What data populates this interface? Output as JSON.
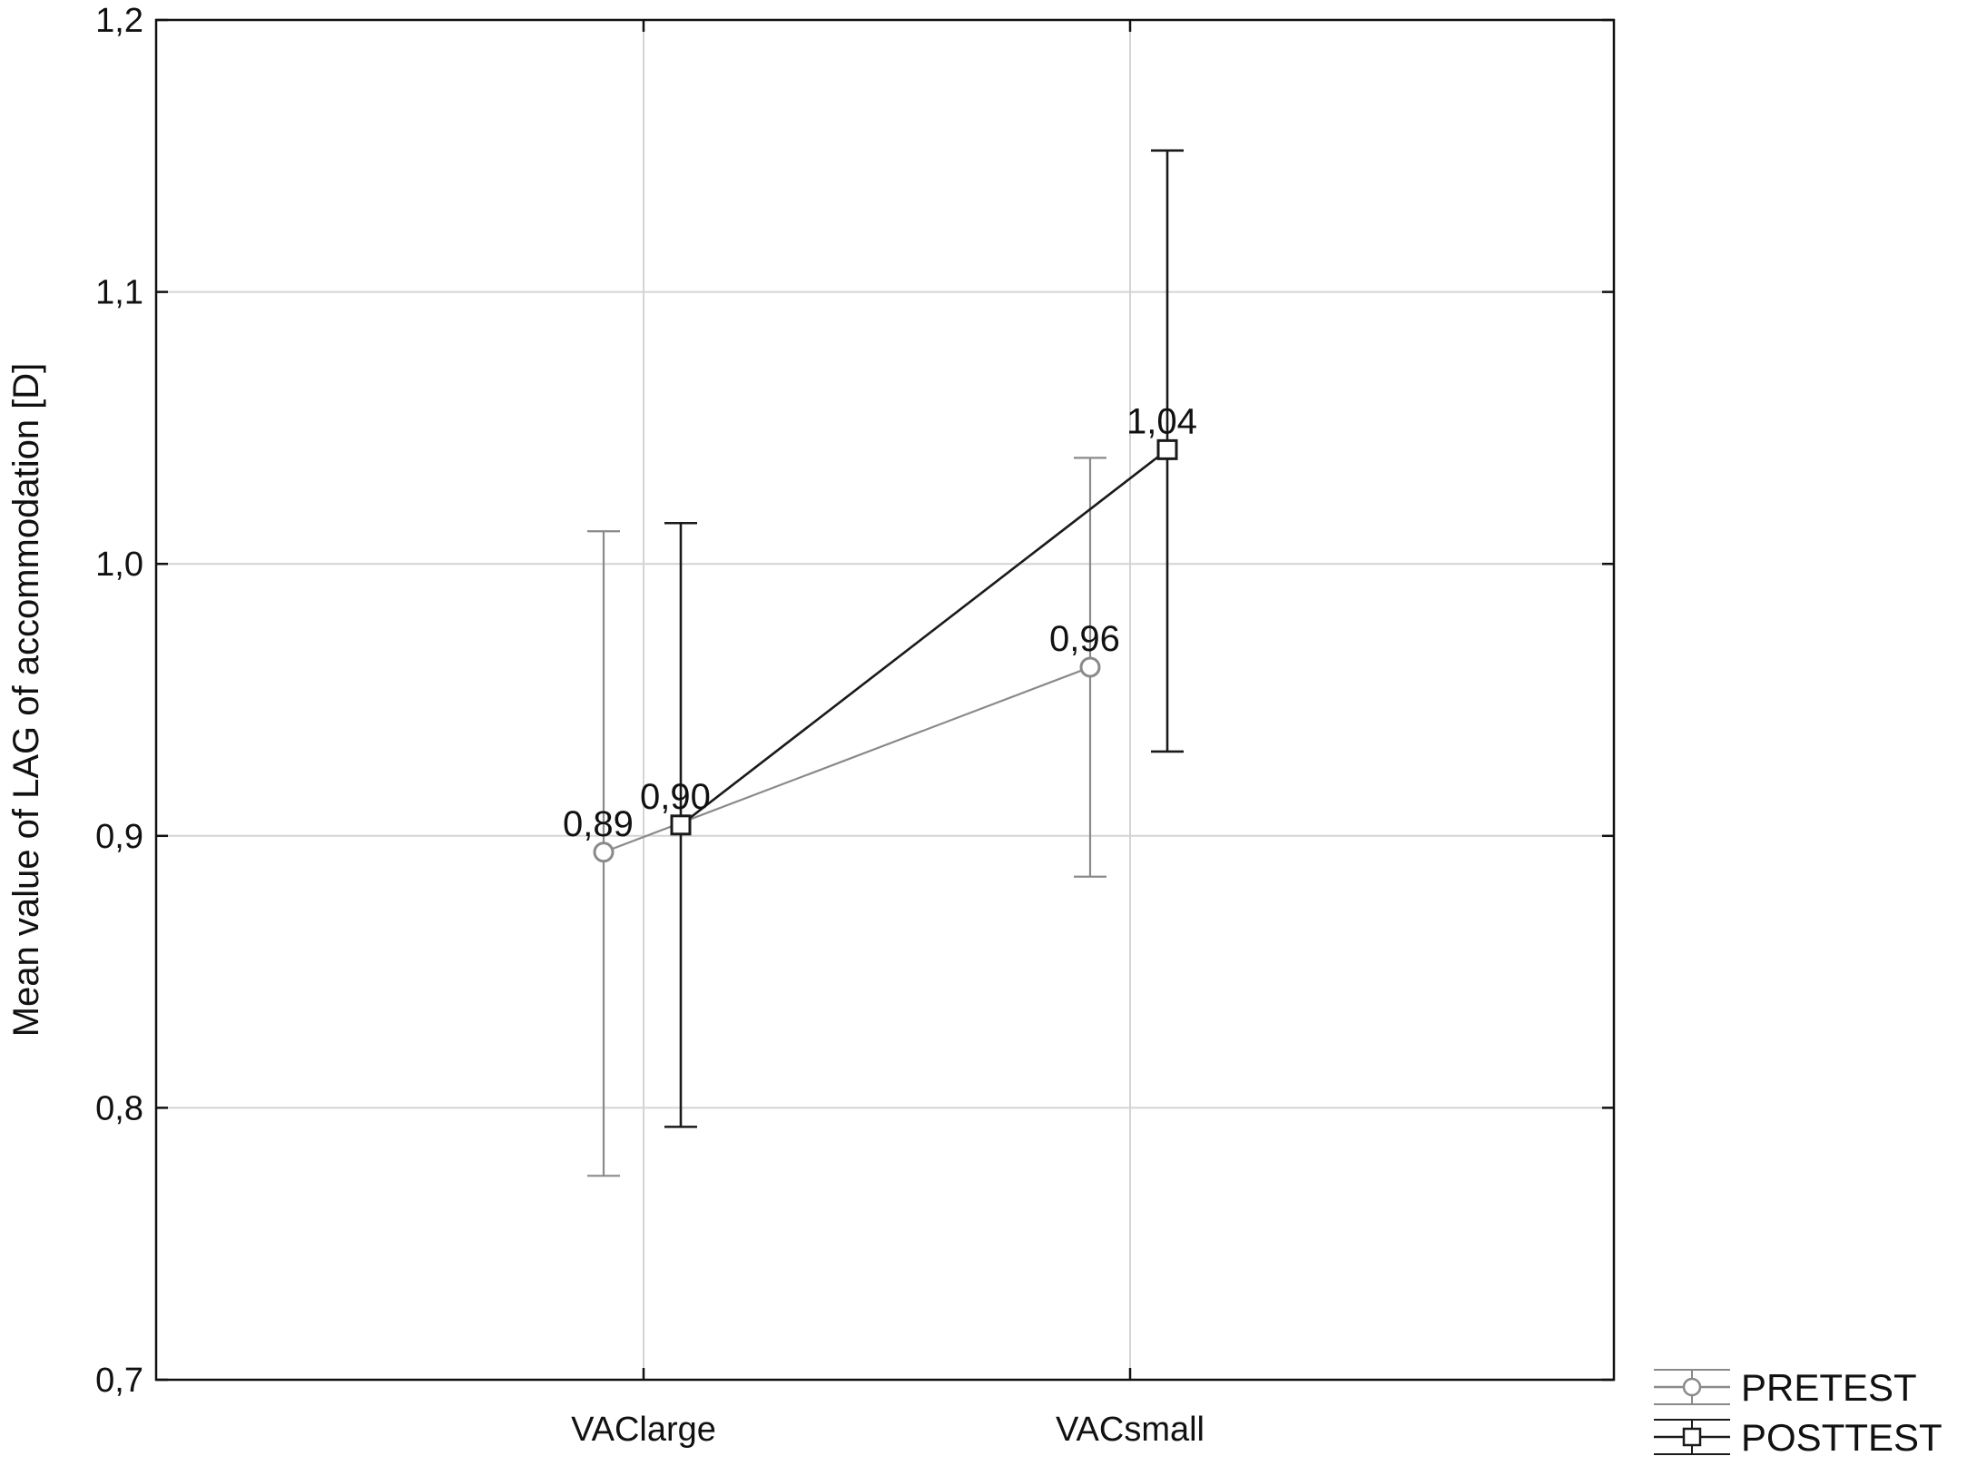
{
  "chart_data": {
    "type": "line",
    "title": "",
    "xlabel": "",
    "ylabel": "Mean value of LAG of accommodation [D]",
    "categories": [
      "VAClarge",
      "VACsmall"
    ],
    "ylim": [
      0.7,
      1.2
    ],
    "yticks": [
      0.7,
      0.8,
      0.9,
      1.0,
      1.1,
      1.2
    ],
    "ytick_labels": [
      "0,7",
      "0,8",
      "0,9",
      "1,0",
      "1,1",
      "1,2"
    ],
    "grid": true,
    "legend_position": "bottom-right",
    "series": [
      {
        "name": "PRETEST",
        "marker": "circle",
        "color": "#8a8a8a",
        "values": [
          0.894,
          0.962
        ],
        "lower": [
          0.775,
          0.885
        ],
        "upper": [
          1.012,
          1.039
        ],
        "labels": [
          "0,89",
          "0,96"
        ]
      },
      {
        "name": "POSTTEST",
        "marker": "square",
        "color": "#1a1a1a",
        "values": [
          0.904,
          1.042
        ],
        "lower": [
          0.793,
          0.931
        ],
        "upper": [
          1.015,
          1.152
        ],
        "labels": [
          "0,90",
          "1,04"
        ]
      }
    ]
  }
}
